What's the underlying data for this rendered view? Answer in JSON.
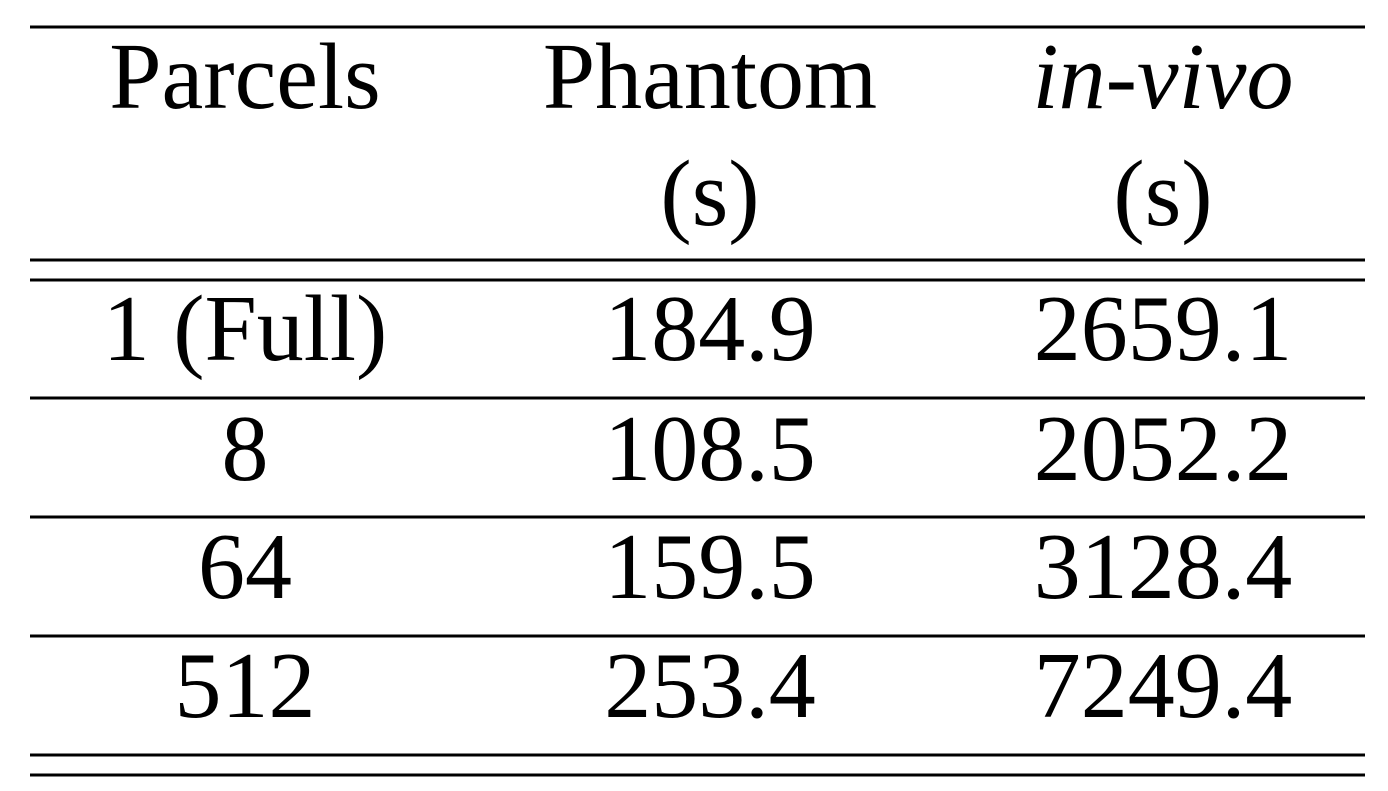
{
  "table": {
    "header": [
      [
        "Parcels"
      ],
      [
        "Phantom",
        "(s)"
      ],
      [
        "in-vivo",
        "(s)"
      ]
    ],
    "rows": [
      [
        "1 (Full)",
        "184.9",
        "2659.1"
      ],
      [
        "8",
        "108.5",
        "2052.2"
      ],
      [
        "64",
        "159.5",
        "3128.4"
      ],
      [
        "512",
        "253.4",
        "7249.4"
      ]
    ]
  }
}
